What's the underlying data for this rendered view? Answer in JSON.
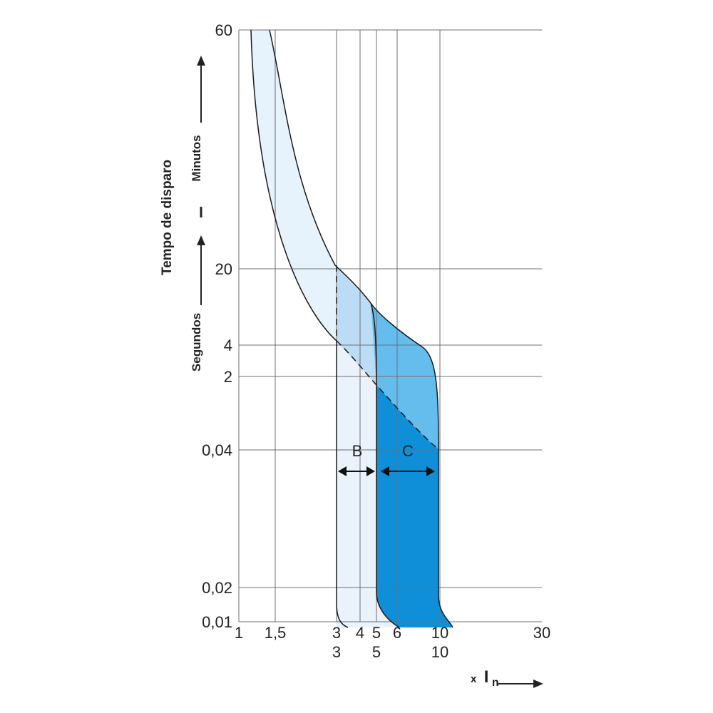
{
  "chart_data": {
    "type": "area",
    "title": "",
    "ylabel": "Tempo de disparo",
    "ylabel_lower": "Segundos",
    "ylabel_upper": "Minutos",
    "xlabel_prefix": "x",
    "xlabel": "In",
    "xlabel_main": "I",
    "xlabel_sub": "n",
    "x_ticks": [
      {
        "value": 1,
        "label": "1"
      },
      {
        "value": 1.5,
        "label": "1,5"
      },
      {
        "value": 3,
        "label": "3"
      },
      {
        "value": 4,
        "label": "4"
      },
      {
        "value": 5,
        "label": "5"
      },
      {
        "value": 6,
        "label": "6"
      },
      {
        "value": 10,
        "label": "10"
      },
      {
        "value": 30,
        "label": "30"
      }
    ],
    "x_ticks_row2": [
      {
        "value": 3,
        "label": "3"
      },
      {
        "value": 5,
        "label": "5"
      },
      {
        "value": 10,
        "label": "10"
      }
    ],
    "y_ticks": [
      {
        "label": "0,01"
      },
      {
        "label": "0,02"
      },
      {
        "label": "0,04"
      },
      {
        "label": "2"
      },
      {
        "label": "4"
      },
      {
        "label": "20"
      },
      {
        "label": "60"
      }
    ],
    "series": [
      {
        "name": "B",
        "range": [
          3,
          5
        ],
        "color": "#eaf2fb"
      },
      {
        "name": "C",
        "range": [
          5,
          10
        ],
        "color": "#0f8fd8"
      }
    ],
    "colors": {
      "thermal_band": "#e6f2fc",
      "b_overlap": "#bcdcf5",
      "c_upper": "#65bdee",
      "c_lower": "#0f8fd8",
      "grid": "#6f6f6f",
      "curve": "#1a1a1a"
    },
    "grid": true
  }
}
